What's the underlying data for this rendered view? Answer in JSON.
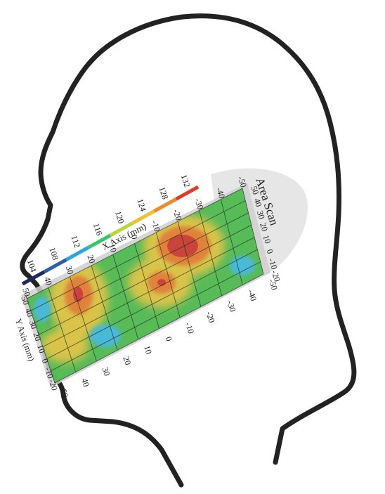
{
  "diagram": {
    "panel_title": "Area Scan",
    "x_axis_label": "X Axis (mm)",
    "y_axis_label": "Y Axis (mm)",
    "x_ticks": [
      "50",
      "40",
      "30",
      "20",
      "10",
      "0",
      "-10",
      "-20",
      "-30",
      "-40",
      "-50"
    ],
    "y_ticks": [
      "50",
      "40",
      "30",
      "20",
      "10",
      "0",
      "-10",
      "-20"
    ],
    "colorbar_ticks": [
      "104",
      "108",
      "112",
      "116",
      "120",
      "124",
      "128",
      "132"
    ],
    "colorbar_colors": [
      "#1f2a5c",
      "#2d5fa8",
      "#2ea6d8",
      "#37c46a",
      "#b7d83a",
      "#f0c232",
      "#f08a2a",
      "#e23a2a"
    ],
    "scan_background_color": "#49b84a",
    "hotspot_colors": {
      "yellow": "#d9c44a",
      "orange": "#e0823a",
      "red": "#c9443a",
      "cyan": "#48b9d8"
    }
  }
}
